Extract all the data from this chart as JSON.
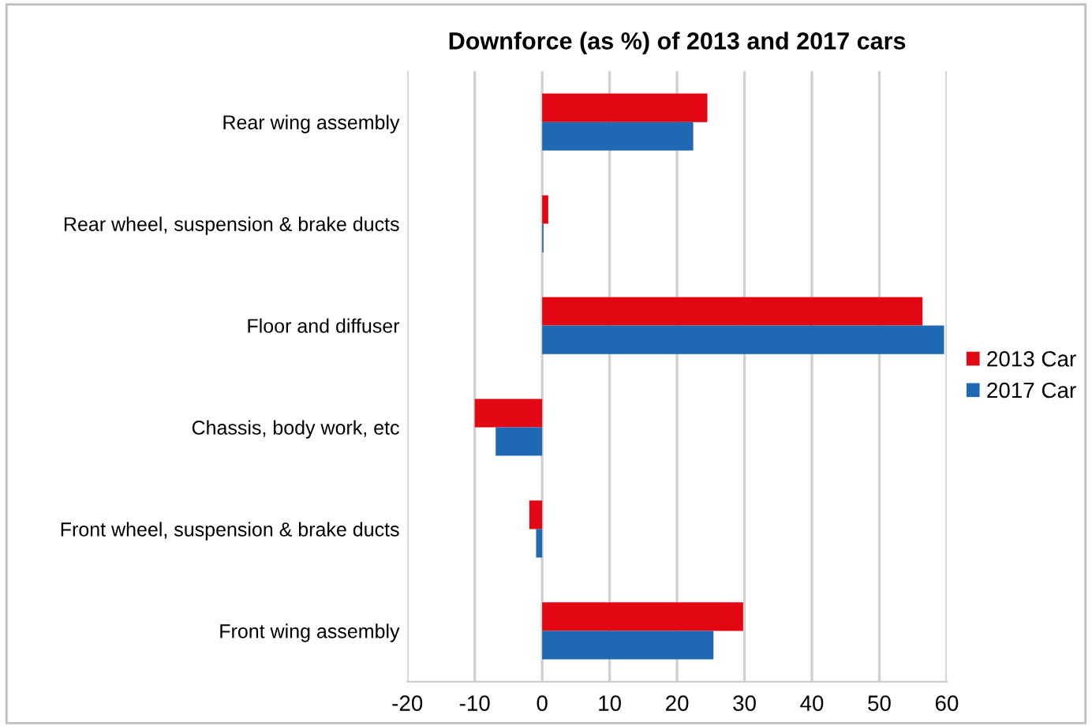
{
  "chart_data": {
    "type": "bar",
    "orientation": "horizontal",
    "title": "Downforce (as %) of 2013 and 2017 cars",
    "categories": [
      "Rear wing assembly",
      "Rear wheel, suspension & brake ducts",
      "Floor and diffuser",
      "Chassis, body work, etc",
      "Front wheel, suspension & brake ducts",
      "Front wing assembly"
    ],
    "series": [
      {
        "name": "2013 Car",
        "color": "#e30613",
        "values": [
          24.5,
          0.9,
          56.4,
          -10,
          -1.9,
          29.8
        ]
      },
      {
        "name": "2017 Car",
        "color": "#1f68b3",
        "values": [
          22.4,
          0.2,
          59.6,
          -6.9,
          -0.9,
          25.4
        ]
      }
    ],
    "xlim": [
      -20,
      60
    ],
    "xticks": [
      -20,
      -10,
      0,
      10,
      20,
      30,
      40,
      50,
      60
    ],
    "grid": "x",
    "legend": "right"
  }
}
